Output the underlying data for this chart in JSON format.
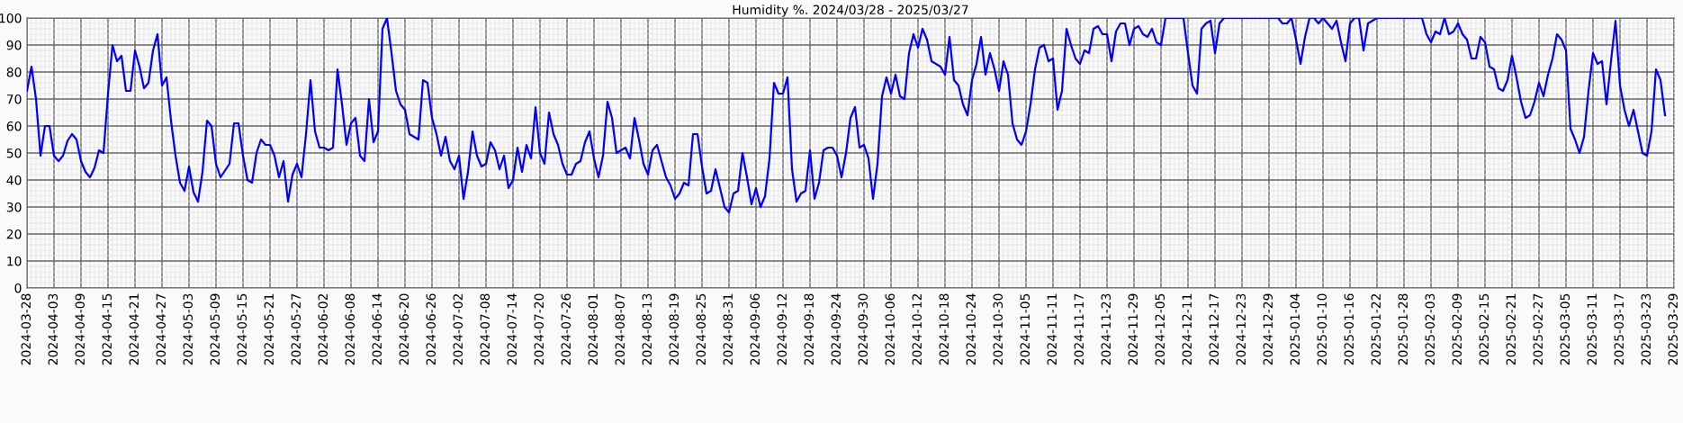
{
  "chart_data": {
    "type": "line",
    "title": "Humidity %. 2024/03/28 - 2025/03/27",
    "x": [
      "2024-03-28",
      "2024-03-29",
      "2024-03-30",
      "2024-03-31",
      "2024-04-01",
      "2024-04-02",
      "2024-04-03",
      "2024-04-04",
      "2024-04-05",
      "2024-04-06",
      "2024-04-07",
      "2024-04-08",
      "2024-04-09",
      "2024-04-10",
      "2024-04-11",
      "2024-04-12",
      "2024-04-13",
      "2024-04-14",
      "2024-04-15",
      "2024-04-16",
      "2024-04-17",
      "2024-04-18",
      "2024-04-19",
      "2024-04-20",
      "2024-04-21",
      "2024-04-22",
      "2024-04-23",
      "2024-04-24",
      "2024-04-25",
      "2024-04-26",
      "2024-04-27",
      "2024-04-28",
      "2024-04-29",
      "2024-04-30",
      "2024-05-01",
      "2024-05-02",
      "2024-05-03",
      "2024-05-04",
      "2024-05-05",
      "2024-05-06",
      "2024-05-07",
      "2024-05-08",
      "2024-05-09",
      "2024-05-10",
      "2024-05-11",
      "2024-05-12",
      "2024-05-13",
      "2024-05-14",
      "2024-05-15",
      "2024-05-16",
      "2024-05-17",
      "2024-05-18",
      "2024-05-19",
      "2024-05-20",
      "2024-05-21",
      "2024-05-22",
      "2024-05-23",
      "2024-05-24",
      "2024-05-25",
      "2024-05-26",
      "2024-05-27",
      "2024-05-28",
      "2024-05-29",
      "2024-05-30",
      "2024-05-31",
      "2024-06-01",
      "2024-06-02",
      "2024-06-03",
      "2024-06-04",
      "2024-06-05",
      "2024-06-06",
      "2024-06-07",
      "2024-06-08",
      "2024-06-09",
      "2024-06-10",
      "2024-06-11",
      "2024-06-12",
      "2024-06-13",
      "2024-06-14",
      "2024-06-15",
      "2024-06-16",
      "2024-06-17",
      "2024-06-18",
      "2024-06-19",
      "2024-06-20",
      "2024-06-21",
      "2024-06-22",
      "2024-06-23",
      "2024-06-24",
      "2024-06-25",
      "2024-06-26",
      "2024-06-27",
      "2024-06-28",
      "2024-06-29",
      "2024-06-30",
      "2024-07-01",
      "2024-07-02",
      "2024-07-03",
      "2024-07-04",
      "2024-07-05",
      "2024-07-06",
      "2024-07-07",
      "2024-07-08",
      "2024-07-09",
      "2024-07-10",
      "2024-07-11",
      "2024-07-12",
      "2024-07-13",
      "2024-07-14",
      "2024-07-15",
      "2024-07-16",
      "2024-07-17",
      "2024-07-18",
      "2024-07-19",
      "2024-07-20",
      "2024-07-21",
      "2024-07-22",
      "2024-07-23",
      "2024-07-24",
      "2024-07-25",
      "2024-07-26",
      "2024-07-27",
      "2024-07-28",
      "2024-07-29",
      "2024-07-30",
      "2024-07-31",
      "2024-08-01",
      "2024-08-02",
      "2024-08-03",
      "2024-08-04",
      "2024-08-05",
      "2024-08-06",
      "2024-08-07",
      "2024-08-08",
      "2024-08-09",
      "2024-08-10",
      "2024-08-11",
      "2024-08-12",
      "2024-08-13",
      "2024-08-14",
      "2024-08-15",
      "2024-08-16",
      "2024-08-17",
      "2024-08-18",
      "2024-08-19",
      "2024-08-20",
      "2024-08-21",
      "2024-08-22",
      "2024-08-23",
      "2024-08-24",
      "2024-08-25",
      "2024-08-26",
      "2024-08-27",
      "2024-08-28",
      "2024-08-29",
      "2024-08-30",
      "2024-08-31",
      "2024-09-01",
      "2024-09-02",
      "2024-09-03",
      "2024-09-04",
      "2024-09-05",
      "2024-09-06",
      "2024-09-07",
      "2024-09-08",
      "2024-09-09",
      "2024-09-10",
      "2024-09-11",
      "2024-09-12",
      "2024-09-13",
      "2024-09-14",
      "2024-09-15",
      "2024-09-16",
      "2024-09-17",
      "2024-09-18",
      "2024-09-19",
      "2024-09-20",
      "2024-09-21",
      "2024-09-22",
      "2024-09-23",
      "2024-09-24",
      "2024-09-25",
      "2024-09-26",
      "2024-09-27",
      "2024-09-28",
      "2024-09-29",
      "2024-09-30",
      "2024-10-01",
      "2024-10-02",
      "2024-10-03",
      "2024-10-04",
      "2024-10-05",
      "2024-10-06",
      "2024-10-07",
      "2024-10-08",
      "2024-10-09",
      "2024-10-10",
      "2024-10-11",
      "2024-10-12",
      "2024-10-13",
      "2024-10-14",
      "2024-10-15",
      "2024-10-16",
      "2024-10-17",
      "2024-10-18",
      "2024-10-19",
      "2024-10-20",
      "2024-10-21",
      "2024-10-22",
      "2024-10-23",
      "2024-10-24",
      "2024-10-25",
      "2024-10-26",
      "2024-10-27",
      "2024-10-28",
      "2024-10-29",
      "2024-10-30",
      "2024-10-31",
      "2024-11-01",
      "2024-11-02",
      "2024-11-03",
      "2024-11-04",
      "2024-11-05",
      "2024-11-06",
      "2024-11-07",
      "2024-11-08",
      "2024-11-09",
      "2024-11-10",
      "2024-11-11",
      "2024-11-12",
      "2024-11-13",
      "2024-11-14",
      "2024-11-15",
      "2024-11-16",
      "2024-11-17",
      "2024-11-18",
      "2024-11-19",
      "2024-11-20",
      "2024-11-21",
      "2024-11-22",
      "2024-11-23",
      "2024-11-24",
      "2024-11-25",
      "2024-11-26",
      "2024-11-27",
      "2024-11-28",
      "2024-11-29",
      "2024-11-30",
      "2024-12-01",
      "2024-12-02",
      "2024-12-03",
      "2024-12-04",
      "2024-12-05",
      "2024-12-06",
      "2024-12-07",
      "2024-12-08",
      "2024-12-09",
      "2024-12-10",
      "2024-12-11",
      "2024-12-12",
      "2024-12-13",
      "2024-12-14",
      "2024-12-15",
      "2024-12-16",
      "2024-12-17",
      "2024-12-18",
      "2024-12-19",
      "2024-12-20",
      "2024-12-21",
      "2024-12-22",
      "2024-12-23",
      "2024-12-24",
      "2024-12-25",
      "2024-12-26",
      "2024-12-27",
      "2024-12-28",
      "2024-12-29",
      "2024-12-30",
      "2024-12-31",
      "2025-01-01",
      "2025-01-02",
      "2025-01-03",
      "2025-01-04",
      "2025-01-05",
      "2025-01-06",
      "2025-01-07",
      "2025-01-08",
      "2025-01-09",
      "2025-01-10",
      "2025-01-11",
      "2025-01-12",
      "2025-01-13",
      "2025-01-14",
      "2025-01-15",
      "2025-01-16",
      "2025-01-17",
      "2025-01-18",
      "2025-01-19",
      "2025-01-20",
      "2025-01-21",
      "2025-01-22",
      "2025-01-23",
      "2025-01-24",
      "2025-01-25",
      "2025-01-26",
      "2025-01-27",
      "2025-01-28",
      "2025-01-29",
      "2025-01-30",
      "2025-01-31",
      "2025-02-01",
      "2025-02-02",
      "2025-02-03",
      "2025-02-04",
      "2025-02-05",
      "2025-02-06",
      "2025-02-07",
      "2025-02-08",
      "2025-02-09",
      "2025-02-10",
      "2025-02-11",
      "2025-02-12",
      "2025-02-13",
      "2025-02-14",
      "2025-02-15",
      "2025-02-16",
      "2025-02-17",
      "2025-02-18",
      "2025-02-19",
      "2025-02-20",
      "2025-02-21",
      "2025-02-22",
      "2025-02-23",
      "2025-02-24",
      "2025-02-25",
      "2025-02-26",
      "2025-02-27",
      "2025-02-28",
      "2025-03-01",
      "2025-03-02",
      "2025-03-03",
      "2025-03-04",
      "2025-03-05",
      "2025-03-06",
      "2025-03-07",
      "2025-03-08",
      "2025-03-09",
      "2025-03-10",
      "2025-03-11",
      "2025-03-12",
      "2025-03-13",
      "2025-03-14",
      "2025-03-15",
      "2025-03-16",
      "2025-03-17",
      "2025-03-18",
      "2025-03-19",
      "2025-03-20",
      "2025-03-21",
      "2025-03-22",
      "2025-03-23",
      "2025-03-24",
      "2025-03-25",
      "2025-03-26",
      "2025-03-27"
    ],
    "series": [
      {
        "color": "#0000ff",
        "values": [
          73,
          82,
          70,
          49,
          60,
          60,
          49,
          47,
          49,
          54.5,
          57,
          55,
          47,
          43,
          41,
          44.5,
          51,
          50,
          72,
          90,
          84,
          86,
          73,
          73,
          88,
          82,
          74,
          76,
          88,
          94,
          75,
          78,
          62,
          49,
          39,
          36,
          45,
          35.5,
          32,
          43,
          62,
          60,
          46,
          41,
          43.5,
          46,
          61,
          61,
          49,
          40,
          39,
          50,
          55,
          53,
          53,
          49,
          41,
          47,
          32,
          42,
          46,
          41,
          57,
          77,
          58,
          52,
          52,
          51,
          52,
          81,
          68,
          53,
          61,
          63,
          49,
          47,
          70,
          54,
          58,
          96,
          100,
          87,
          73,
          68,
          66,
          57,
          56,
          55,
          77,
          76,
          63,
          57,
          49,
          56,
          47,
          44,
          49,
          33,
          43,
          58,
          49,
          45,
          46,
          54,
          51,
          44,
          49,
          37,
          40,
          52,
          43,
          53,
          48,
          67,
          50,
          46,
          65,
          57,
          53,
          46,
          42,
          42,
          46,
          47,
          54,
          58,
          48,
          41,
          49,
          69,
          63,
          50,
          51,
          52,
          48,
          63,
          55,
          46,
          42,
          51,
          53,
          47,
          41,
          38,
          33,
          35,
          39,
          38,
          57,
          57,
          45,
          35,
          36,
          44,
          37,
          30,
          28,
          35,
          36,
          50,
          41,
          31,
          37,
          30,
          34,
          48,
          76,
          72,
          72,
          78,
          44,
          32,
          35,
          36,
          51,
          33,
          39,
          51,
          52,
          52,
          49,
          41,
          50,
          63,
          67,
          52,
          53,
          48,
          33,
          46,
          71,
          78,
          72,
          79,
          71,
          70,
          87,
          94,
          89,
          96,
          92,
          84,
          83,
          82,
          79,
          93,
          77,
          75,
          68,
          64,
          77,
          83,
          93,
          79,
          87,
          81,
          73,
          84,
          79,
          61,
          55,
          53,
          58,
          68,
          81,
          89,
          90,
          84,
          85,
          66,
          73,
          96,
          90,
          85,
          83,
          88,
          87,
          96,
          97,
          94,
          94,
          84,
          95,
          98,
          98,
          90,
          96,
          97,
          94,
          93,
          96,
          91,
          90,
          100,
          100,
          100,
          100,
          100,
          87,
          75,
          72,
          96,
          98,
          99,
          87,
          98,
          100,
          100,
          100,
          100,
          100,
          100,
          100,
          100,
          100,
          100,
          100,
          100,
          100,
          98,
          98,
          100,
          92,
          83,
          93,
          100,
          100,
          98,
          100,
          98,
          96,
          99,
          91,
          84,
          98,
          100,
          100,
          88,
          98,
          99,
          100,
          100,
          100,
          100,
          100,
          100,
          100,
          100,
          100,
          100,
          100,
          94,
          91,
          95,
          94,
          100,
          94,
          95,
          98,
          94,
          92,
          85,
          85,
          93,
          91,
          82,
          81,
          74,
          73,
          77,
          86,
          78,
          69,
          63,
          64,
          69,
          76,
          71,
          79,
          85,
          94,
          92,
          88,
          59,
          55,
          50,
          56,
          73,
          87,
          83,
          84,
          68,
          84,
          99,
          75,
          66,
          60,
          66,
          58,
          50,
          49,
          58,
          81,
          77,
          64
        ]
      }
    ],
    "xlim": [
      "2024-03-28",
      "2025-03-29"
    ],
    "xticks": [
      "2024-03-28",
      "2024-04-03",
      "2024-04-09",
      "2024-04-15",
      "2024-04-21",
      "2024-04-27",
      "2024-05-03",
      "2024-05-09",
      "2024-05-15",
      "2024-05-21",
      "2024-05-27",
      "2024-06-02",
      "2024-06-08",
      "2024-06-14",
      "2024-06-20",
      "2024-06-26",
      "2024-07-02",
      "2024-07-08",
      "2024-07-14",
      "2024-07-20",
      "2024-07-26",
      "2024-08-01",
      "2024-08-07",
      "2024-08-13",
      "2024-08-19",
      "2024-08-25",
      "2024-08-31",
      "2024-09-06",
      "2024-09-12",
      "2024-09-18",
      "2024-09-24",
      "2024-09-30",
      "2024-10-06",
      "2024-10-12",
      "2024-10-18",
      "2024-10-24",
      "2024-10-30",
      "2024-11-05",
      "2024-11-11",
      "2024-11-17",
      "2024-11-23",
      "2024-11-29",
      "2024-12-05",
      "2024-12-11",
      "2024-12-17",
      "2024-12-23",
      "2024-12-29",
      "2025-01-04",
      "2025-01-10",
      "2025-01-16",
      "2025-01-22",
      "2025-01-28",
      "2025-02-03",
      "2025-02-09",
      "2025-02-15",
      "2025-02-21",
      "2025-02-27",
      "2025-03-05",
      "2025-03-11",
      "2025-03-17",
      "2025-03-23",
      "2025-03-29"
    ],
    "ylim": [
      0,
      100
    ],
    "yticks": [
      0,
      10,
      20,
      30,
      40,
      50,
      60,
      70,
      80,
      90,
      100
    ],
    "grid": true,
    "marker": "none",
    "line_style": "solid"
  }
}
